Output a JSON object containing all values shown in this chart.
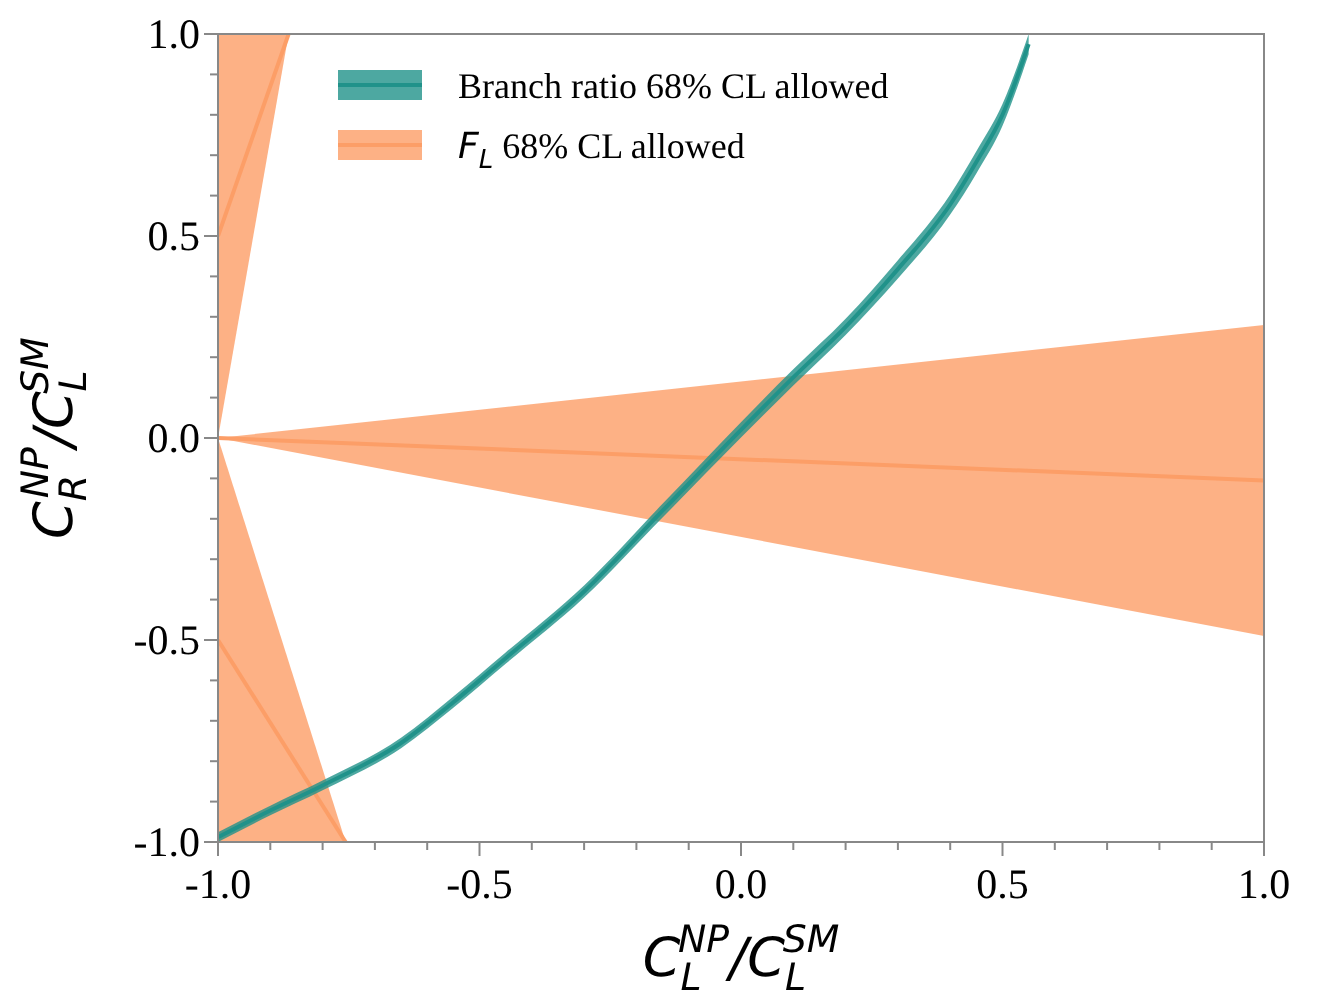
{
  "chart_data": {
    "type": "line",
    "xlabel": "C$_{L}$$^{NP}$/C$_{L}$$^{SM}$",
    "ylabel": "C$_{R}$$^{NP}$/C$_{L}$$^{SM}$",
    "xlim": [
      -1,
      1
    ],
    "ylim": [
      -1,
      1
    ],
    "xticks": [
      {
        "value": -1,
        "label": "-1.0"
      },
      {
        "value": -0.9,
        "label": null
      },
      {
        "value": -0.8,
        "label": null
      },
      {
        "value": -0.7,
        "label": null
      },
      {
        "value": -0.6,
        "label": null
      },
      {
        "value": -0.5,
        "label": "-0.5"
      },
      {
        "value": -0.4,
        "label": null
      },
      {
        "value": -0.3,
        "label": null
      },
      {
        "value": -0.2,
        "label": null
      },
      {
        "value": -0.1,
        "label": null
      },
      {
        "value": 0,
        "label": "0.0"
      },
      {
        "value": 0.1,
        "label": null
      },
      {
        "value": 0.2,
        "label": null
      },
      {
        "value": 0.3,
        "label": null
      },
      {
        "value": 0.4,
        "label": null
      },
      {
        "value": 0.5,
        "label": "0.5"
      },
      {
        "value": 0.6,
        "label": null
      },
      {
        "value": 0.7,
        "label": null
      },
      {
        "value": 0.8,
        "label": null
      },
      {
        "value": 0.9,
        "label": null
      },
      {
        "value": 1,
        "label": "1.0"
      }
    ],
    "yticks": [
      {
        "value": -1,
        "label": "-1.0"
      },
      {
        "value": -0.9,
        "label": null
      },
      {
        "value": -0.8,
        "label": null
      },
      {
        "value": -0.7,
        "label": null
      },
      {
        "value": -0.6,
        "label": null
      },
      {
        "value": -0.5,
        "label": "-0.5"
      },
      {
        "value": -0.4,
        "label": null
      },
      {
        "value": -0.3,
        "label": null
      },
      {
        "value": -0.2,
        "label": null
      },
      {
        "value": -0.1,
        "label": null
      },
      {
        "value": 0,
        "label": "0.0"
      },
      {
        "value": 0.1,
        "label": null
      },
      {
        "value": 0.2,
        "label": null
      },
      {
        "value": 0.3,
        "label": null
      },
      {
        "value": 0.4,
        "label": null
      },
      {
        "value": 0.5,
        "label": "0.5"
      },
      {
        "value": 0.6,
        "label": null
      },
      {
        "value": 0.7,
        "label": null
      },
      {
        "value": 0.8,
        "label": null
      },
      {
        "value": 0.9,
        "label": null
      },
      {
        "value": 1,
        "label": "1.0"
      }
    ],
    "grid": false,
    "legend": "top left",
    "series": [
      {
        "name": "F$_{L}$ 68% CL allowed",
        "color": "#fc9e67",
        "x": [
          -1,
          1
        ],
        "values": [
          0,
          -0.105
        ],
        "lower": [
          0,
          -0.49
        ],
        "upper": [
          0,
          0.28
        ]
      },
      {
        "color": "#fc9e67",
        "x": [
          -1,
          -0.865
        ],
        "values": [
          0.5,
          1
        ],
        "lower": [
          0,
          1
        ],
        "upper": [
          1,
          1
        ]
      },
      {
        "color": "#fc9e67",
        "x": [
          -1,
          -0.756
        ],
        "values": [
          -0.5,
          -1
        ],
        "lower": [
          -1,
          -1
        ],
        "upper": [
          0,
          -1
        ]
      },
      {
        "name": "Branch ratio 68% CL allowed",
        "color": "#20928a",
        "x": [
          -1,
          -0.9,
          -0.8,
          -0.65,
          -0.55,
          -0.45,
          -0.3,
          -0.15,
          0,
          0.1,
          0.2,
          0.3,
          0.4,
          0.45,
          0.5,
          0.55
        ],
        "values": [
          -0.988,
          -0.922,
          -0.86,
          -0.755,
          -0.654,
          -0.545,
          -0.38,
          -0.18,
          0.02,
          0.15,
          0.275,
          0.418,
          0.578,
          0.683,
          0.8,
          0.975
        ],
        "upper": [
          -0.976,
          -0.91,
          -0.848,
          -0.742,
          -0.64,
          -0.531,
          -0.365,
          -0.163,
          0.039,
          0.17,
          0.295,
          0.44,
          0.603,
          0.71,
          0.827,
          1
        ],
        "lower": [
          -1,
          -0.934,
          -0.872,
          -0.768,
          -0.668,
          -0.559,
          -0.395,
          -0.197,
          0.001,
          0.13,
          0.255,
          0.395,
          0.553,
          0.655,
          0.773,
          0.95
        ]
      }
    ]
  }
}
